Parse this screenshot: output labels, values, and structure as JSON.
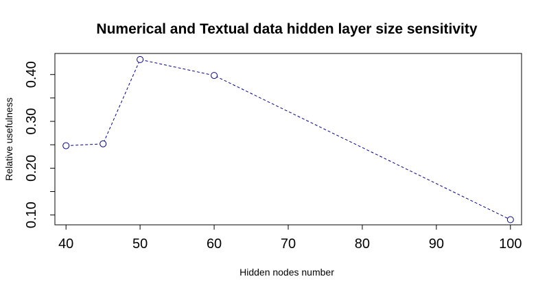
{
  "chart_data": {
    "type": "line",
    "title": "Numerical and Textual data hidden layer size sensitivity",
    "xlabel": "Hidden nodes number",
    "ylabel": "Relative usefulness",
    "x": [
      40,
      45,
      50,
      60,
      100
    ],
    "series": [
      {
        "values": [
          0.248,
          0.252,
          0.432,
          0.398,
          0.09
        ]
      }
    ],
    "xlim": [
      38.5,
      101.5
    ],
    "ylim": [
      0.079,
      0.445
    ],
    "xticks": [
      40,
      50,
      60,
      70,
      80,
      90,
      100
    ],
    "yticks": [
      0.1,
      0.15,
      0.2,
      0.25,
      0.3,
      0.35,
      0.4
    ],
    "ytick_labels": [
      "0.10",
      "",
      "0.20",
      "",
      "0.30",
      "",
      "0.40"
    ],
    "line_style": "dashed",
    "marker": "open-circle",
    "line_color": "#00008b",
    "grid": false
  }
}
